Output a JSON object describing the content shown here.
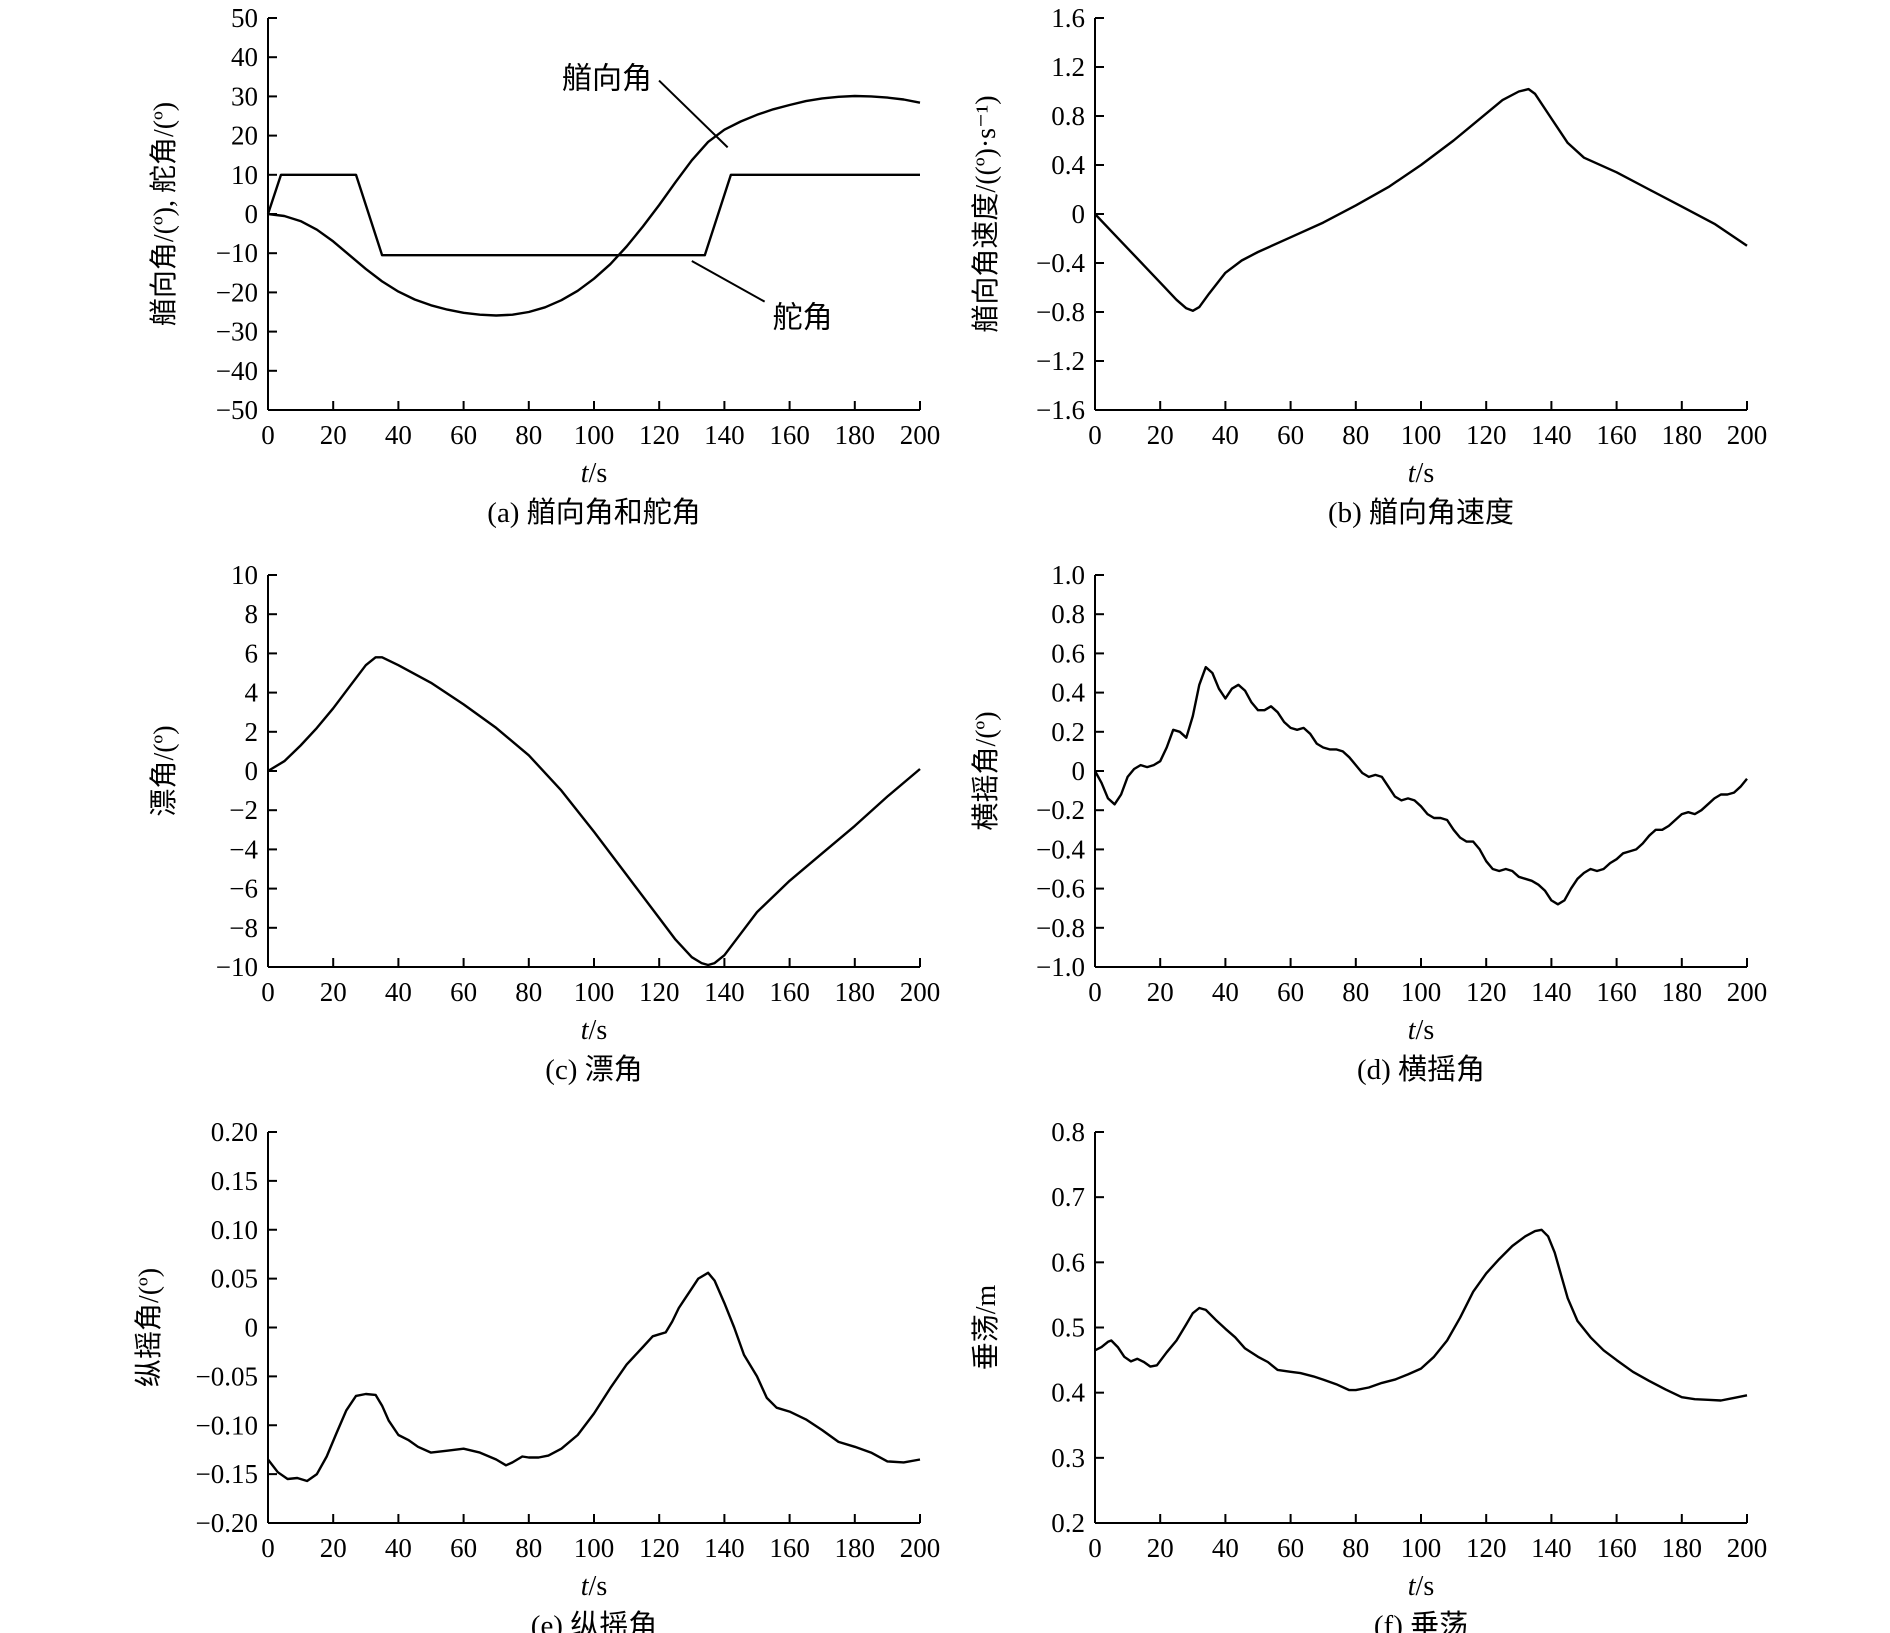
{
  "chart_data": [
    {
      "id": "a",
      "type": "line",
      "caption": "(a) 艏向角和舵角",
      "xlabel": "s",
      "xlabel_italic": "t",
      "ylabel": "艏向角/(º), 舵角/(º)",
      "xlim": [
        0,
        200
      ],
      "ylim": [
        -50,
        50
      ],
      "xticks": [
        0,
        20,
        40,
        60,
        80,
        100,
        120,
        140,
        160,
        180,
        200
      ],
      "yticks": [
        50,
        40,
        30,
        20,
        10,
        0,
        -10,
        -20,
        -30,
        -40,
        -50
      ],
      "ytick_labels": [
        "50",
        "40",
        "30",
        "20",
        "10",
        "0",
        "−10",
        "−20",
        "−30",
        "−40",
        "−50"
      ],
      "annotations": [
        {
          "text": "艏向角",
          "x": 104,
          "y": 32,
          "point_x": 141,
          "point_y": 17,
          "align": "middle"
        },
        {
          "text": "舵角",
          "x": 164,
          "y": -29,
          "point_x": 130,
          "point_y": -12,
          "align": "middle"
        }
      ],
      "series": [
        {
          "x": [
            0,
            5,
            10,
            15,
            20,
            25,
            30,
            35,
            40,
            45,
            50,
            55,
            60,
            65,
            70,
            75,
            80,
            85,
            90,
            95,
            100,
            105,
            110,
            115,
            120,
            125,
            130,
            135,
            140,
            145,
            150,
            155,
            160,
            165,
            170,
            175,
            180,
            185,
            190,
            195,
            200
          ],
          "values": [
            0,
            -0.5,
            -1.8,
            -4,
            -7,
            -10.5,
            -14,
            -17.2,
            -19.8,
            -21.8,
            -23.3,
            -24.4,
            -25.2,
            -25.7,
            -25.9,
            -25.7,
            -25,
            -23.8,
            -22,
            -19.6,
            -16.5,
            -12.8,
            -8.3,
            -3.2,
            2.3,
            8.1,
            13.7,
            18.4,
            21.5,
            23.6,
            25.3,
            26.7,
            27.8,
            28.8,
            29.5,
            29.9,
            30.1,
            30.0,
            29.7,
            29.2,
            28.4
          ]
        },
        {
          "x": [
            0,
            4,
            27,
            35,
            134,
            142,
            200
          ],
          "values": [
            0,
            10,
            10,
            -10.5,
            -10.5,
            10,
            10
          ]
        }
      ]
    },
    {
      "id": "b",
      "type": "line",
      "caption": "(b) 艏向角速度",
      "xlabel": "s",
      "xlabel_italic": "t",
      "ylabel": "艏向角速度/((º)·s⁻¹)",
      "xlim": [
        0,
        200
      ],
      "ylim": [
        -1.6,
        1.6
      ],
      "xticks": [
        0,
        20,
        40,
        60,
        80,
        100,
        120,
        140,
        160,
        180,
        200
      ],
      "yticks": [
        1.6,
        1.2,
        0.8,
        0.4,
        0,
        -0.4,
        -0.8,
        -1.2,
        -1.6
      ],
      "ytick_labels": [
        "1.6",
        "1.2",
        "0.8",
        "0.4",
        "0",
        "−0.4",
        "−0.8",
        "−1.2",
        "−1.6"
      ],
      "series": [
        {
          "x": [
            0,
            5,
            10,
            15,
            20,
            25,
            28,
            30,
            32,
            35,
            40,
            45,
            50,
            60,
            70,
            80,
            90,
            100,
            110,
            120,
            125,
            130,
            133,
            135,
            140,
            145,
            150,
            160,
            170,
            180,
            190,
            200
          ],
          "values": [
            0,
            -0.14,
            -0.28,
            -0.42,
            -0.56,
            -0.7,
            -0.77,
            -0.79,
            -0.76,
            -0.65,
            -0.48,
            -0.38,
            -0.31,
            -0.19,
            -0.07,
            0.07,
            0.22,
            0.4,
            0.6,
            0.82,
            0.93,
            1.0,
            1.02,
            0.98,
            0.78,
            0.58,
            0.46,
            0.34,
            0.2,
            0.06,
            -0.08,
            -0.26
          ]
        }
      ]
    },
    {
      "id": "c",
      "type": "line",
      "caption": "(c) 漂角",
      "xlabel": "s",
      "xlabel_italic": "t",
      "ylabel": "漂角/(º)",
      "xlim": [
        0,
        200
      ],
      "ylim": [
        -10,
        10
      ],
      "xticks": [
        0,
        20,
        40,
        60,
        80,
        100,
        120,
        140,
        160,
        180,
        200
      ],
      "yticks": [
        10,
        8,
        6,
        4,
        2,
        0,
        -2,
        -4,
        -6,
        -8,
        -10
      ],
      "ytick_labels": [
        "10",
        "8",
        "6",
        "4",
        "2",
        "0",
        "−2",
        "−4",
        "−6",
        "−8",
        "−10"
      ],
      "series": [
        {
          "x": [
            0,
            5,
            10,
            15,
            20,
            25,
            30,
            33,
            35,
            40,
            50,
            60,
            70,
            80,
            90,
            100,
            110,
            120,
            125,
            130,
            133,
            135,
            137,
            140,
            145,
            150,
            160,
            170,
            180,
            190,
            200
          ],
          "values": [
            0,
            0.5,
            1.3,
            2.2,
            3.2,
            4.3,
            5.4,
            5.8,
            5.8,
            5.4,
            4.5,
            3.4,
            2.2,
            0.8,
            -1,
            -3.1,
            -5.3,
            -7.5,
            -8.6,
            -9.5,
            -9.8,
            -9.9,
            -9.8,
            -9.4,
            -8.3,
            -7.2,
            -5.6,
            -4.2,
            -2.8,
            -1.3,
            0.1
          ]
        }
      ]
    },
    {
      "id": "d",
      "type": "line",
      "caption": "(d) 横摇角",
      "xlabel": "s",
      "xlabel_italic": "t",
      "ylabel": "横摇角/(º)",
      "xlim": [
        0,
        200
      ],
      "ylim": [
        -1.0,
        1.0
      ],
      "xticks": [
        0,
        20,
        40,
        60,
        80,
        100,
        120,
        140,
        160,
        180,
        200
      ],
      "yticks": [
        1.0,
        0.8,
        0.6,
        0.4,
        0.2,
        0,
        -0.2,
        -0.4,
        -0.6,
        -0.8,
        -1.0
      ],
      "ytick_labels": [
        "1.0",
        "0.8",
        "0.6",
        "0.4",
        "0.2",
        "0",
        "−0.2",
        "−0.4",
        "−0.6",
        "−0.8",
        "−1.0"
      ],
      "series": [
        {
          "x": [
            0,
            2,
            4,
            6,
            8,
            10,
            12,
            14,
            16,
            18,
            20,
            22,
            24,
            26,
            28,
            30,
            32,
            34,
            36,
            38,
            40,
            42,
            44,
            46,
            48,
            50,
            52,
            54,
            56,
            58,
            60,
            62,
            64,
            66,
            68,
            70,
            72,
            74,
            76,
            78,
            80,
            82,
            84,
            86,
            88,
            90,
            92,
            94,
            96,
            98,
            100,
            102,
            104,
            106,
            108,
            110,
            112,
            114,
            116,
            118,
            120,
            122,
            124,
            126,
            128,
            130,
            132,
            134,
            136,
            138,
            140,
            142,
            144,
            146,
            148,
            150,
            152,
            154,
            156,
            158,
            160,
            162,
            164,
            166,
            168,
            170,
            172,
            174,
            176,
            178,
            180,
            182,
            184,
            186,
            188,
            190,
            192,
            194,
            196,
            198,
            200
          ],
          "values": [
            0,
            -0.06,
            -0.14,
            -0.17,
            -0.12,
            -0.03,
            0.01,
            0.03,
            0.02,
            0.03,
            0.05,
            0.12,
            0.21,
            0.2,
            0.17,
            0.28,
            0.44,
            0.53,
            0.5,
            0.42,
            0.37,
            0.42,
            0.44,
            0.41,
            0.35,
            0.31,
            0.31,
            0.33,
            0.3,
            0.25,
            0.22,
            0.21,
            0.22,
            0.19,
            0.14,
            0.12,
            0.11,
            0.11,
            0.1,
            0.07,
            0.03,
            -0.01,
            -0.03,
            -0.02,
            -0.03,
            -0.08,
            -0.13,
            -0.15,
            -0.14,
            -0.15,
            -0.18,
            -0.22,
            -0.24,
            -0.24,
            -0.25,
            -0.3,
            -0.34,
            -0.36,
            -0.36,
            -0.4,
            -0.46,
            -0.5,
            -0.51,
            -0.5,
            -0.51,
            -0.54,
            -0.55,
            -0.56,
            -0.58,
            -0.61,
            -0.66,
            -0.68,
            -0.66,
            -0.6,
            -0.55,
            -0.52,
            -0.5,
            -0.51,
            -0.5,
            -0.47,
            -0.45,
            -0.42,
            -0.41,
            -0.4,
            -0.37,
            -0.33,
            -0.3,
            -0.3,
            -0.28,
            -0.25,
            -0.22,
            -0.21,
            -0.22,
            -0.2,
            -0.17,
            -0.14,
            -0.12,
            -0.12,
            -0.11,
            -0.08,
            -0.04
          ]
        }
      ]
    },
    {
      "id": "e",
      "type": "line",
      "caption": "(e) 纵摇角",
      "xlabel": "s",
      "xlabel_italic": "t",
      "ylabel": "纵摇角/(º)",
      "xlim": [
        0,
        200
      ],
      "ylim": [
        -0.2,
        0.2
      ],
      "xticks": [
        0,
        20,
        40,
        60,
        80,
        100,
        120,
        140,
        160,
        180,
        200
      ],
      "yticks": [
        0.2,
        0.15,
        0.1,
        0.05,
        0,
        -0.05,
        -0.1,
        -0.15,
        -0.2
      ],
      "ytick_labels": [
        "0.20",
        "0.15",
        "0.10",
        "0.05",
        "0",
        "−0.05",
        "−0.10",
        "−0.15",
        "−0.20"
      ],
      "series": [
        {
          "x": [
            0,
            3,
            6,
            9,
            12,
            15,
            18,
            21,
            24,
            27,
            30,
            33,
            35,
            37,
            40,
            43,
            46,
            50,
            55,
            60,
            65,
            70,
            73,
            75,
            78,
            80,
            83,
            86,
            90,
            95,
            100,
            105,
            110,
            115,
            118,
            120,
            122,
            124,
            126,
            128,
            130,
            132,
            135,
            137,
            140,
            143,
            146,
            150,
            153,
            156,
            160,
            165,
            170,
            175,
            180,
            185,
            190,
            195,
            200
          ],
          "values": [
            -0.135,
            -0.148,
            -0.155,
            -0.154,
            -0.157,
            -0.15,
            -0.132,
            -0.108,
            -0.085,
            -0.07,
            -0.068,
            -0.069,
            -0.08,
            -0.095,
            -0.11,
            -0.115,
            -0.122,
            -0.128,
            -0.126,
            -0.124,
            -0.128,
            -0.135,
            -0.141,
            -0.138,
            -0.132,
            -0.133,
            -0.133,
            -0.131,
            -0.124,
            -0.11,
            -0.088,
            -0.062,
            -0.038,
            -0.02,
            -0.009,
            -0.007,
            -0.005,
            0.006,
            0.02,
            0.03,
            0.04,
            0.05,
            0.056,
            0.048,
            0.025,
            0.0,
            -0.028,
            -0.05,
            -0.072,
            -0.082,
            -0.086,
            -0.094,
            -0.105,
            -0.117,
            -0.122,
            -0.128,
            -0.137,
            -0.138,
            -0.135
          ]
        }
      ]
    },
    {
      "id": "f",
      "type": "line",
      "caption": "(f) 垂荡",
      "xlabel": "s",
      "xlabel_italic": "t",
      "ylabel": "垂荡/m",
      "xlim": [
        0,
        200
      ],
      "ylim": [
        0.2,
        0.8
      ],
      "xticks": [
        0,
        20,
        40,
        60,
        80,
        100,
        120,
        140,
        160,
        180,
        200
      ],
      "yticks": [
        0.8,
        0.7,
        0.6,
        0.5,
        0.4,
        0.3,
        0.2
      ],
      "ytick_labels": [
        "0.8",
        "0.7",
        "0.6",
        "0.5",
        "0.4",
        "0.3",
        "0.2"
      ],
      "series": [
        {
          "x": [
            0,
            2,
            4,
            5,
            7,
            9,
            11,
            13,
            15,
            17,
            19,
            22,
            25,
            28,
            30,
            32,
            34,
            37,
            40,
            43,
            46,
            50,
            53,
            56,
            60,
            63,
            67,
            70,
            74,
            78,
            80,
            84,
            88,
            92,
            96,
            100,
            104,
            108,
            112,
            116,
            120,
            124,
            128,
            132,
            135,
            137,
            139,
            141,
            143,
            145,
            148,
            152,
            156,
            160,
            165,
            170,
            175,
            180,
            184,
            188,
            192,
            196,
            200
          ],
          "values": [
            0.465,
            0.47,
            0.478,
            0.48,
            0.47,
            0.455,
            0.448,
            0.452,
            0.447,
            0.44,
            0.442,
            0.462,
            0.48,
            0.505,
            0.522,
            0.53,
            0.527,
            0.512,
            0.498,
            0.485,
            0.468,
            0.455,
            0.447,
            0.435,
            0.432,
            0.43,
            0.425,
            0.42,
            0.413,
            0.404,
            0.404,
            0.408,
            0.415,
            0.42,
            0.428,
            0.437,
            0.455,
            0.48,
            0.515,
            0.555,
            0.583,
            0.605,
            0.625,
            0.64,
            0.648,
            0.65,
            0.64,
            0.615,
            0.58,
            0.545,
            0.51,
            0.485,
            0.465,
            0.45,
            0.432,
            0.418,
            0.405,
            0.393,
            0.39,
            0.389,
            0.388,
            0.392,
            0.396
          ]
        }
      ]
    }
  ]
}
